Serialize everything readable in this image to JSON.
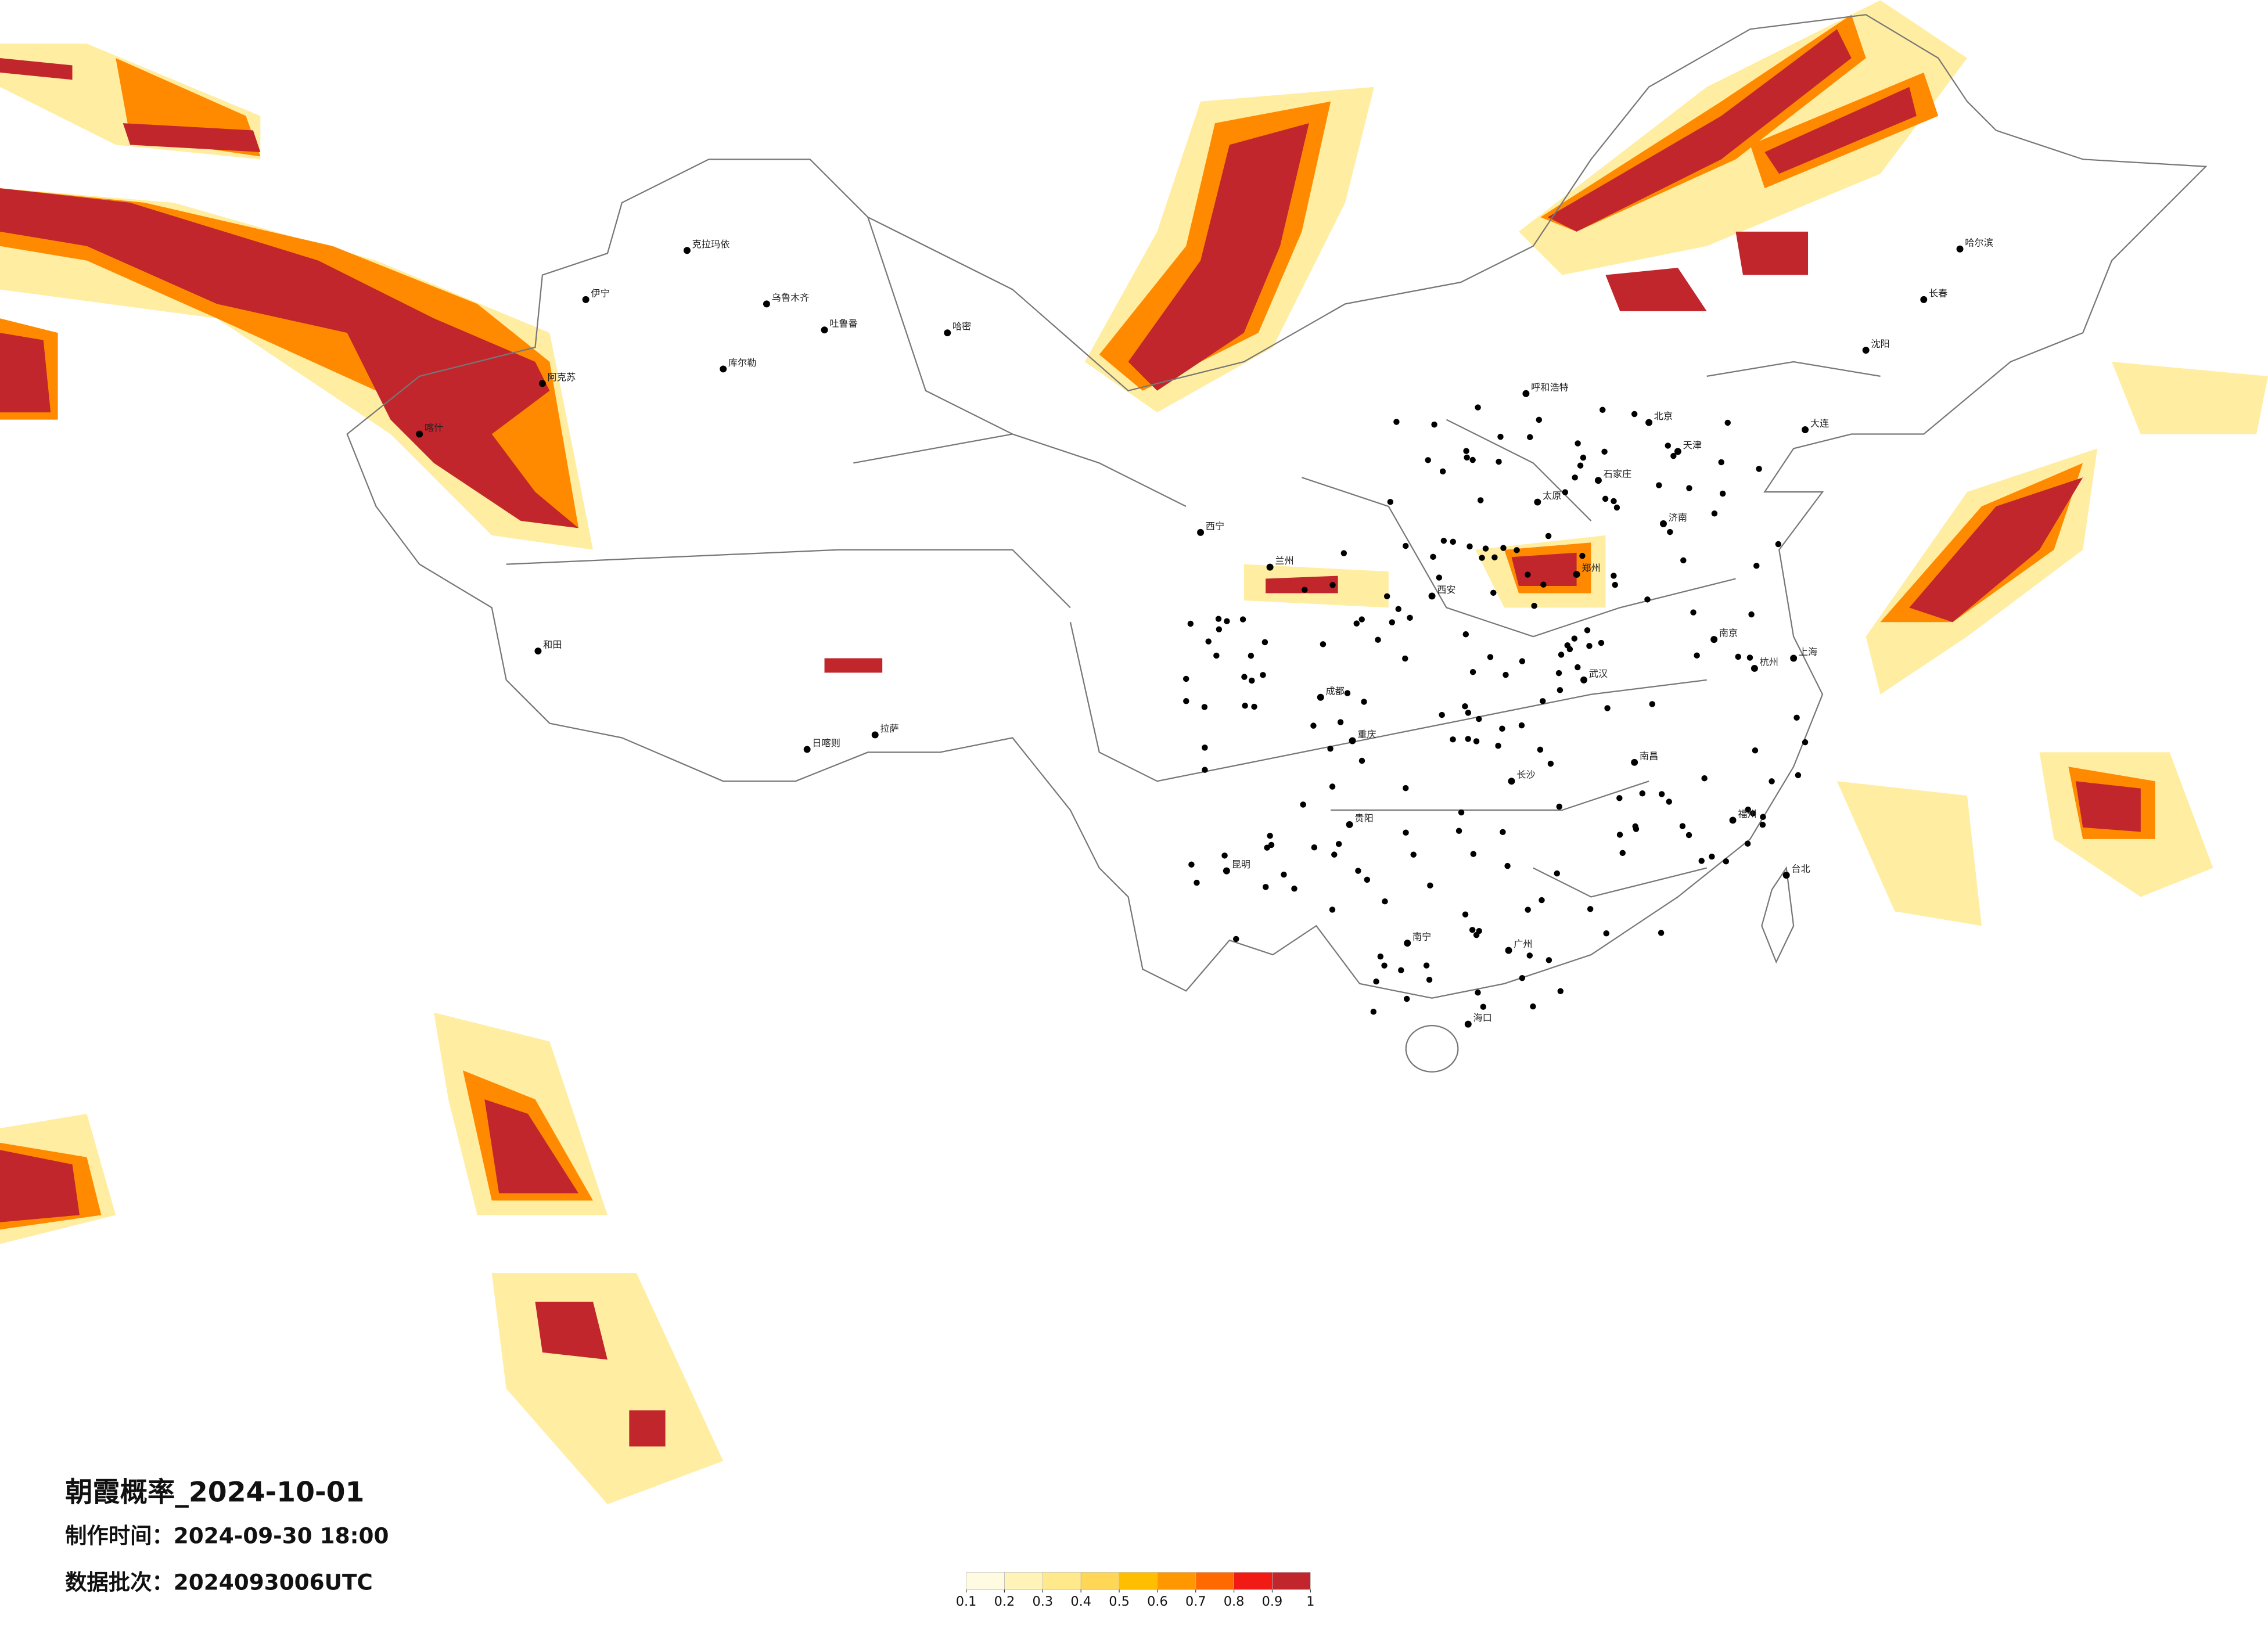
{
  "title": "朝霞概率_2024-10-01",
  "info": [
    {
      "label": "制作时间：",
      "value": "2024-09-30 18:00"
    },
    {
      "label": "数据批次：",
      "value": "2024093006UTC"
    }
  ],
  "legend": {
    "colors": [
      "#fffbe3",
      "#fff3b8",
      "#ffe98a",
      "#ffd656",
      "#ffbf00",
      "#ff9800",
      "#ff6a00",
      "#f21a14",
      "#c0262c"
    ],
    "ticks": [
      0.1,
      0.2,
      0.3,
      0.4,
      0.5,
      0.6,
      0.7,
      0.8,
      0.9,
      1
    ]
  },
  "cities": [
    "克拉玛依",
    "伊宁",
    "乌鲁木齐",
    "吐鲁番",
    "哈密",
    "库尔勒",
    "阿克苏",
    "喀什",
    "和田",
    "拉萨",
    "日喀则",
    "西宁",
    "兰州",
    "成都",
    "重庆",
    "昆明",
    "贵阳",
    "南宁",
    "广州",
    "长沙",
    "武汉",
    "南昌",
    "福州",
    "杭州",
    "上海",
    "南京",
    "济南",
    "北京",
    "天津",
    "石家庄",
    "太原",
    "郑州",
    "西安",
    "呼和浩特",
    "哈尔滨",
    "长春",
    "沈阳",
    "海口",
    "台北",
    "大连"
  ]
}
